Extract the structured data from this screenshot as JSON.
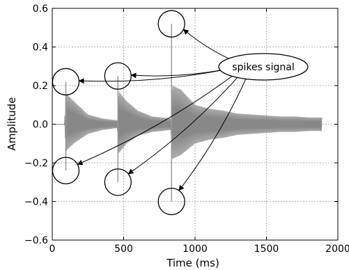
{
  "chart_data": {
    "type": "line",
    "title": "",
    "xlabel": "Time (ms)",
    "ylabel": "Amplitude",
    "xlim": [
      0,
      2000
    ],
    "ylim": [
      -0.6,
      0.6
    ],
    "grid": true,
    "x_ticks": [
      0,
      500,
      1000,
      1500,
      2000
    ],
    "x_tick_labels": [
      "0",
      "500",
      "1000",
      "1500",
      "2000"
    ],
    "y_ticks": [
      -0.6,
      -0.4,
      -0.2,
      0.0,
      0.2,
      0.4,
      0.6
    ],
    "y_tick_labels": [
      "−0.6",
      "−0.4",
      "−0.2",
      "0.0",
      "0.2",
      "0.4",
      "0.6"
    ],
    "series": [
      {
        "color": "#888888",
        "envelope": {
          "x": [
            0,
            85,
            95,
            150,
            250,
            350,
            455,
            465,
            520,
            600,
            700,
            830,
            840,
            900,
            1000,
            1100,
            1200,
            1300,
            1400,
            1500,
            1600,
            1700,
            1800,
            1890
          ],
          "upper": [
            0.0,
            0.0,
            0.16,
            0.12,
            0.05,
            0.03,
            0.02,
            0.17,
            0.12,
            0.07,
            0.04,
            0.03,
            0.2,
            0.18,
            0.1,
            0.08,
            0.07,
            0.055,
            0.05,
            0.045,
            0.04,
            0.04,
            0.035,
            0.035
          ],
          "lower": [
            0.0,
            0.0,
            -0.14,
            -0.1,
            -0.05,
            -0.03,
            -0.02,
            -0.15,
            -0.1,
            -0.06,
            -0.04,
            -0.03,
            -0.18,
            -0.16,
            -0.1,
            -0.08,
            -0.07,
            -0.055,
            -0.05,
            -0.045,
            -0.04,
            -0.04,
            -0.035,
            -0.035
          ]
        },
        "spikes": [
          {
            "x": 95,
            "y_min": -0.24,
            "y_max": 0.22
          },
          {
            "x": 460,
            "y_min": -0.3,
            "y_max": 0.25
          },
          {
            "x": 835,
            "y_min": -0.4,
            "y_max": 0.52
          }
        ]
      }
    ],
    "annotations": [
      {
        "text": "spikes signal",
        "targets": [
          {
            "x": 95,
            "y": 0.22
          },
          {
            "x": 460,
            "y": 0.25
          },
          {
            "x": 835,
            "y": 0.52
          },
          {
            "x": 95,
            "y": -0.24
          },
          {
            "x": 460,
            "y": -0.3
          },
          {
            "x": 835,
            "y": -0.4
          }
        ]
      }
    ]
  },
  "colors": {
    "signal": "#888888",
    "spike": "#9a9a9a",
    "axis": "#000000",
    "grid": "#9a9a9a"
  }
}
